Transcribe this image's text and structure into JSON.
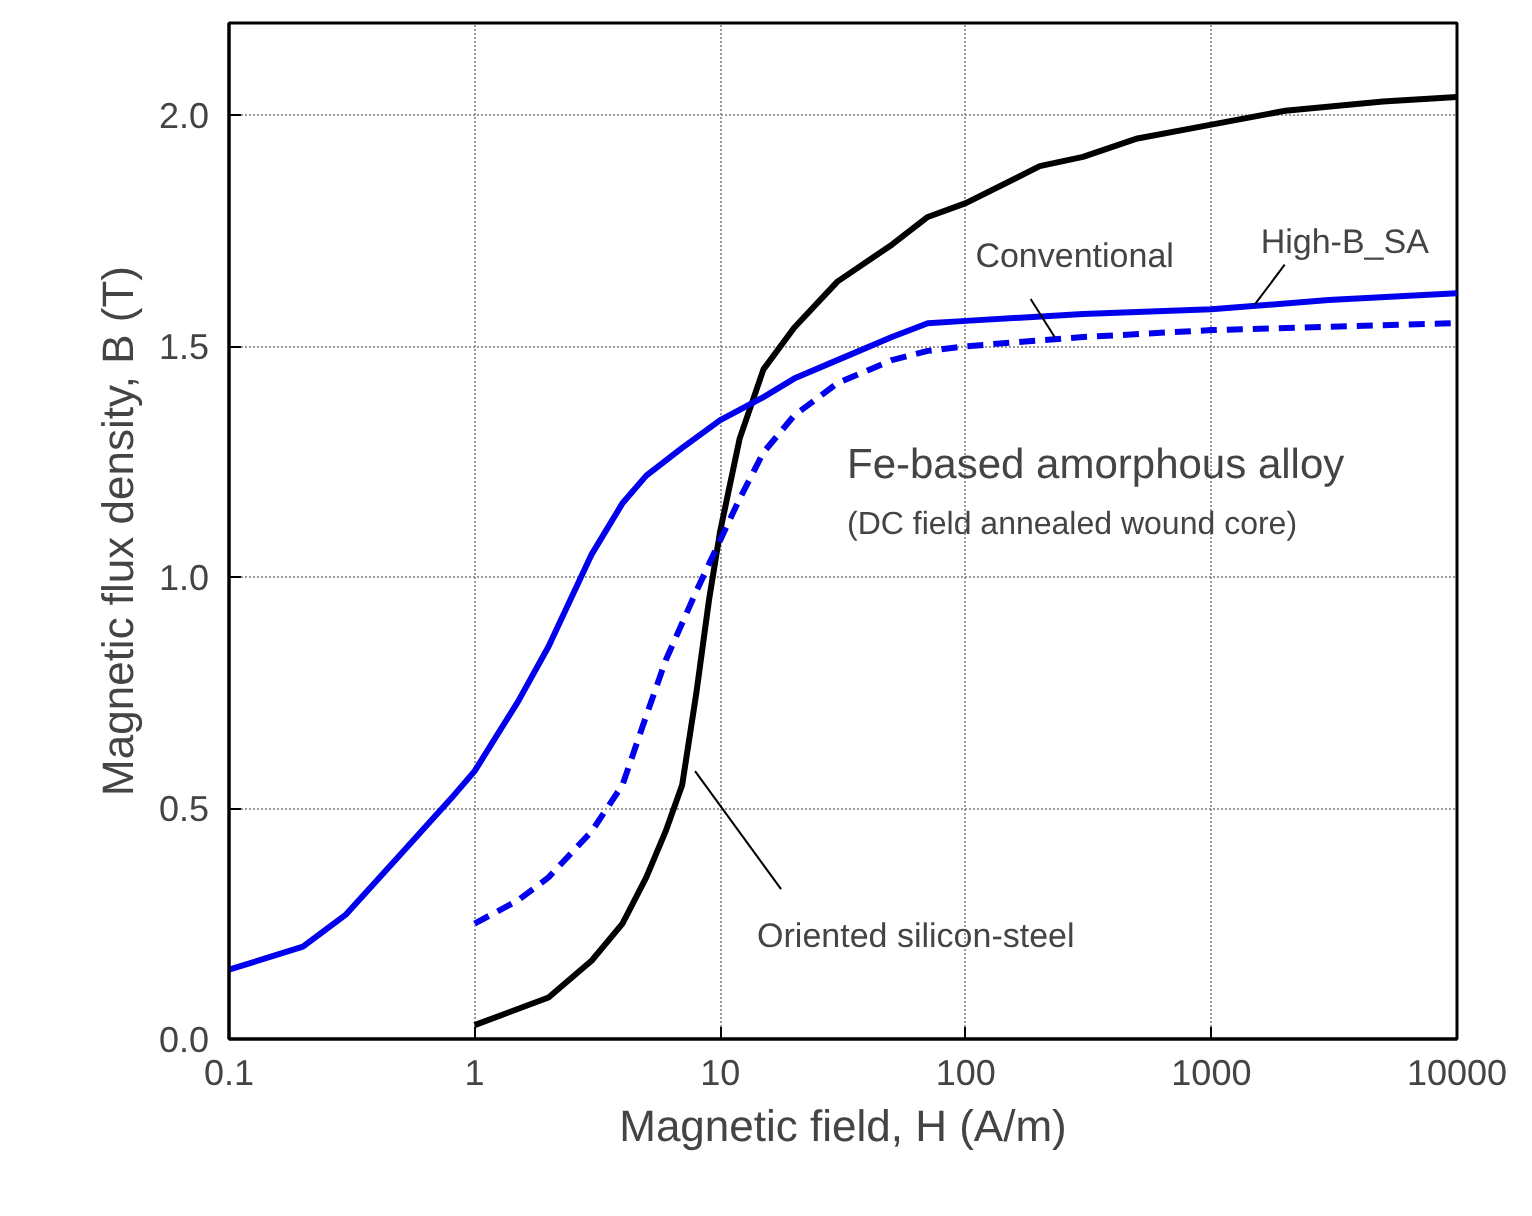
{
  "chart_data": {
    "type": "line",
    "xlabel": "Magnetic field, H (A/m)",
    "ylabel": "Magnetic flux density, B (T)",
    "log": "x",
    "grid": true,
    "xlim": [
      0.1,
      10000
    ],
    "xticks": [
      0.1,
      1,
      10,
      100,
      1000,
      10000
    ],
    "ylim": [
      0,
      2.2
    ],
    "yticks": [
      {
        "value": 0,
        "label": "0.0"
      },
      {
        "value": 0.5,
        "label": "0.5"
      },
      {
        "value": 1,
        "label": "1.0"
      },
      {
        "value": 1.5,
        "label": "1.5"
      },
      {
        "value": 2,
        "label": "2.0"
      }
    ],
    "series": [
      {
        "color": "#000000",
        "line_style": "solid",
        "x": [
          1,
          2,
          3,
          4,
          5,
          6,
          7,
          8,
          9,
          10,
          12,
          15,
          20,
          30,
          50,
          70,
          100,
          200,
          300,
          500,
          1000,
          2000,
          5000,
          10000
        ],
        "values": [
          0.03,
          0.09,
          0.17,
          0.25,
          0.35,
          0.45,
          0.55,
          0.75,
          0.95,
          1.1,
          1.3,
          1.45,
          1.54,
          1.64,
          1.72,
          1.78,
          1.81,
          1.89,
          1.91,
          1.95,
          1.98,
          2.01,
          2.03,
          2.04
        ]
      },
      {
        "color": "#0000ee",
        "line_style": "solid",
        "x": [
          0.1,
          0.2,
          0.3,
          0.5,
          0.8,
          1,
          1.5,
          2,
          3,
          4,
          5,
          7,
          10,
          15,
          20,
          30,
          50,
          70,
          100,
          300,
          1000,
          3000,
          10000
        ],
        "values": [
          0.15,
          0.2,
          0.27,
          0.4,
          0.52,
          0.58,
          0.73,
          0.85,
          1.05,
          1.16,
          1.22,
          1.28,
          1.34,
          1.39,
          1.43,
          1.47,
          1.52,
          1.55,
          1.555,
          1.57,
          1.58,
          1.6,
          1.615
        ]
      },
      {
        "color": "#0000ee",
        "line_style": "dashed",
        "x": [
          1,
          1.5,
          2,
          3,
          4,
          5,
          6,
          8,
          10,
          12,
          15,
          20,
          30,
          50,
          70,
          100,
          300,
          1000,
          10000
        ],
        "values": [
          0.25,
          0.3,
          0.35,
          0.45,
          0.55,
          0.7,
          0.82,
          0.97,
          1.08,
          1.17,
          1.27,
          1.35,
          1.42,
          1.47,
          1.49,
          1.5,
          1.52,
          1.535,
          1.55
        ]
      }
    ],
    "annotations": [
      {
        "text": "Conventional",
        "x": 230,
        "y": 1.52
      },
      {
        "text": "High-B_SA",
        "x": 1500,
        "y": 1.59
      },
      "Fe-based amorphous alloy",
      "(DC field annealed wound core)",
      {
        "text": "Oriented silicon-steel",
        "x": 7.9,
        "y": 0.58
      }
    ]
  }
}
